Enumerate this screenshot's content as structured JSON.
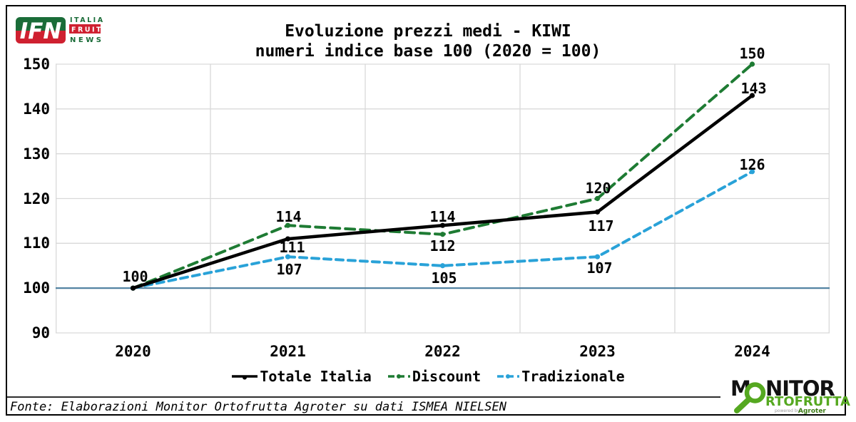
{
  "header": {
    "title_line1": "Evoluzione prezzi medi - KIWI",
    "title_line2": "numeri indice base 100 (2020 = 100)"
  },
  "ifn_logo": {
    "acronym": "IFN",
    "word1": "ITALIA",
    "word2": "FRUIT",
    "word3": "NEWS",
    "green": "#1a6c38",
    "red": "#cf2030"
  },
  "monitor_logo": {
    "part1": "M",
    "part2": "NITOR",
    "line2": "RTOFRUTTA",
    "powered_by": "powered by",
    "brand": "Agroter",
    "green": "#55a820",
    "black": "#111111"
  },
  "footer": {
    "source": "Fonte: Elaborazioni Monitor Ortofrutta Agroter su dati ISMEA NIELSEN"
  },
  "chart_data": {
    "type": "line",
    "title": "Evoluzione prezzi medi - KIWI",
    "subtitle": "numeri indice base 100 (2020 = 100)",
    "categories": [
      "2020",
      "2021",
      "2022",
      "2023",
      "2024"
    ],
    "ylim": [
      90,
      150
    ],
    "yticks": [
      90,
      100,
      110,
      120,
      130,
      140,
      150
    ],
    "grid": true,
    "gridline_color": "#d9d9d9",
    "baseline": {
      "value": 100,
      "color": "#4a7d9d"
    },
    "legend_position": "bottom",
    "series": [
      {
        "name": "Totale Italia",
        "color": "#000000",
        "style": "solid",
        "values": [
          100,
          111,
          114,
          117,
          143
        ],
        "labels": [
          "100",
          "111",
          "114",
          "117",
          "143"
        ]
      },
      {
        "name": "Discount",
        "color": "#1e7b33",
        "style": "dashed",
        "values": [
          100,
          114,
          112,
          120,
          150
        ],
        "labels": [
          null,
          "114",
          "112",
          "120",
          "150"
        ]
      },
      {
        "name": "Tradizionale",
        "color": "#29a2d8",
        "style": "dashed",
        "values": [
          100,
          107,
          105,
          107,
          126
        ],
        "labels": [
          null,
          "107",
          "105",
          "107",
          "126"
        ]
      }
    ]
  }
}
